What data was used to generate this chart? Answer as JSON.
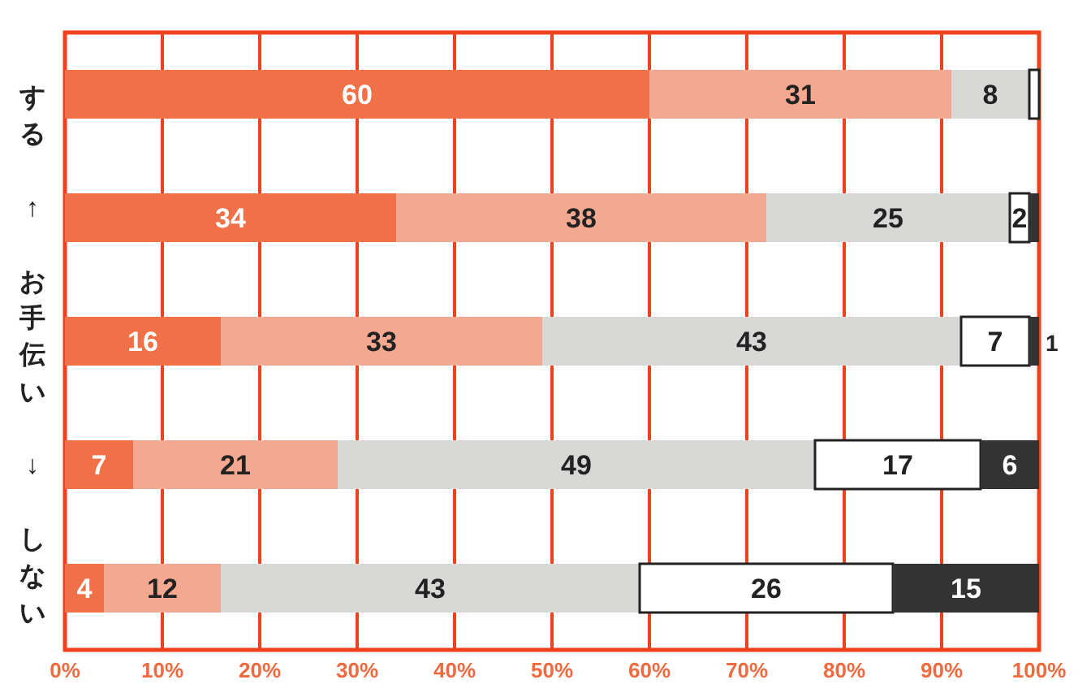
{
  "chart_data": {
    "type": "bar",
    "orientation": "horizontal",
    "stacked": true,
    "ylabel": "する ↑ お手伝い ↓ しない",
    "categories": [
      null,
      null,
      null,
      null,
      null
    ],
    "series": [
      {
        "color": "#f07048",
        "values": [
          60,
          34,
          16,
          7,
          4
        ],
        "value_labels": [
          "60",
          "34",
          "16",
          "7",
          "4"
        ]
      },
      {
        "color": "#f4a890",
        "values": [
          31,
          38,
          33,
          21,
          12
        ],
        "value_labels": [
          "31",
          "38",
          "33",
          "21",
          "12"
        ]
      },
      {
        "color": "#d8d8d6",
        "values": [
          8,
          25,
          43,
          49,
          43
        ],
        "value_labels": [
          "8",
          "25",
          "43",
          "49",
          "43"
        ]
      },
      {
        "color": "#ffffff",
        "values": [
          1,
          2,
          7,
          17,
          26
        ],
        "value_labels": [
          null,
          "2",
          "7",
          "17",
          "26"
        ]
      },
      {
        "color": "#333333",
        "values": [
          null,
          1,
          1,
          6,
          15
        ],
        "value_labels": [
          null,
          null,
          "1",
          "6",
          "15"
        ]
      }
    ],
    "xlim": [
      0,
      100
    ],
    "xticks": [
      {
        "value": 0,
        "label": "0%"
      },
      {
        "value": 10,
        "label": "10%"
      },
      {
        "value": 20,
        "label": "20%"
      },
      {
        "value": 30,
        "label": "30%"
      },
      {
        "value": 40,
        "label": "40%"
      },
      {
        "value": 50,
        "label": "50%"
      },
      {
        "value": 60,
        "label": "60%"
      },
      {
        "value": 70,
        "label": "70%"
      },
      {
        "value": 80,
        "label": "80%"
      },
      {
        "value": 90,
        "label": "90%"
      },
      {
        "value": 100,
        "label": "100%"
      }
    ],
    "grid": "x"
  }
}
